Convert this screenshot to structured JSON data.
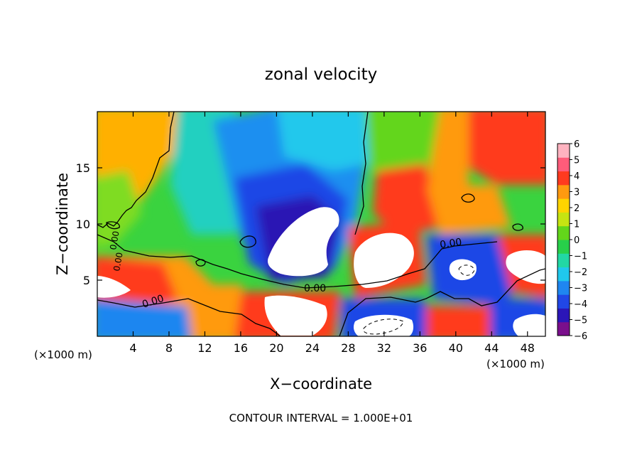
{
  "chart_data": {
    "type": "heatmap",
    "title": "zonal velocity",
    "xlabel": "X−coordinate",
    "ylabel": "Z−coordinate",
    "x_unit_left": "(×1000 m)",
    "x_unit_right": "(×1000 m)",
    "footer": "CONTOUR INTERVAL = 1.000E+01",
    "xlim": [
      0,
      50
    ],
    "ylim": [
      0,
      20
    ],
    "x_ticks": [
      4,
      8,
      12,
      16,
      20,
      24,
      28,
      32,
      36,
      40,
      44,
      48
    ],
    "y_ticks": [
      5,
      10,
      15
    ],
    "colorbar": {
      "min": -6,
      "max": 6,
      "labels": [
        "6",
        "5",
        "4",
        "3",
        "2",
        "1",
        "0",
        "−1",
        "−2",
        "−3",
        "−4",
        "−5",
        "−6"
      ],
      "colors": [
        "#7a0f8c",
        "#2b16b8",
        "#2147e6",
        "#1f86f0",
        "#20c8ec",
        "#22d8a4",
        "#28d04a",
        "#63d61b",
        "#c6e412",
        "#ffd400",
        "#ff9a10",
        "#ff3a1f",
        "#ff5c7a",
        "#ffb3c0"
      ]
    },
    "contour_labels": [
      "0.00",
      "0.00",
      "0.00",
      "0.00",
      "0.00"
    ],
    "grid": false
  }
}
